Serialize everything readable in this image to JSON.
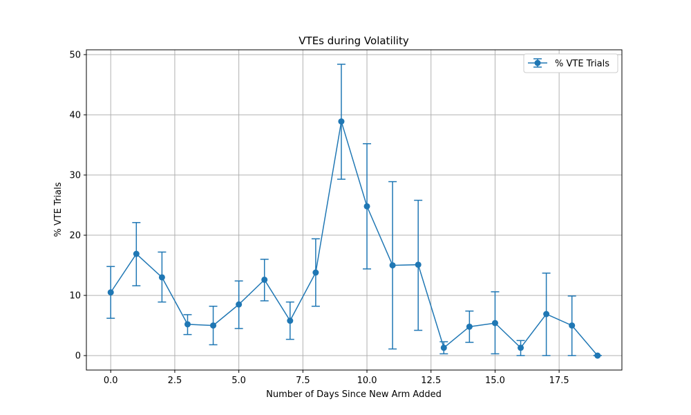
{
  "chart_data": {
    "type": "line",
    "title": "VTEs during Volatility",
    "xlabel": "Number of Days Since New Arm Added",
    "ylabel": "% VTE Trials",
    "xlim": [
      -0.95,
      19.95
    ],
    "ylim": [
      -2.4,
      50.8
    ],
    "xticks": [
      0.0,
      2.5,
      5.0,
      7.5,
      10.0,
      12.5,
      15.0,
      17.5
    ],
    "xtick_labels": [
      "0.0",
      "2.5",
      "5.0",
      "7.5",
      "10.0",
      "12.5",
      "15.0",
      "17.5"
    ],
    "yticks": [
      0,
      10,
      20,
      30,
      40,
      50
    ],
    "ytick_labels": [
      "0",
      "10",
      "20",
      "30",
      "40",
      "50"
    ],
    "grid": true,
    "legend": {
      "position": "top-right"
    },
    "colors": {
      "series": "#1f77b4",
      "grid": "#b0b0b0",
      "axes": "#000000"
    },
    "series": [
      {
        "name": "% VTE Trials",
        "x": [
          0,
          1,
          2,
          3,
          4,
          5,
          6,
          7,
          8,
          9,
          10,
          11,
          12,
          13,
          14,
          15,
          16,
          17,
          18,
          19
        ],
        "y": [
          10.5,
          16.9,
          13.0,
          5.2,
          5.0,
          8.5,
          12.6,
          5.8,
          13.8,
          38.9,
          24.8,
          15.0,
          15.1,
          1.3,
          4.8,
          5.4,
          1.3,
          6.9,
          5.0,
          0.0
        ],
        "err_low": [
          6.2,
          11.6,
          8.9,
          3.5,
          1.8,
          4.5,
          9.1,
          2.7,
          8.2,
          29.3,
          14.4,
          1.1,
          4.2,
          0.3,
          2.2,
          0.3,
          0.0,
          0.0,
          0.0,
          0.0
        ],
        "err_high": [
          14.8,
          22.1,
          17.2,
          6.8,
          8.2,
          12.4,
          16.0,
          8.9,
          19.4,
          48.4,
          35.2,
          28.9,
          25.8,
          2.3,
          7.4,
          10.6,
          2.5,
          13.7,
          9.9,
          0.0
        ]
      }
    ]
  }
}
